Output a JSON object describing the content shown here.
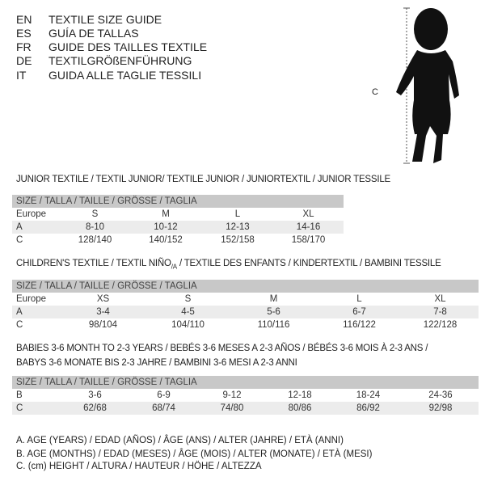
{
  "languages": [
    {
      "code": "EN",
      "title": "TEXTILE SIZE GUIDE"
    },
    {
      "code": "ES",
      "title": "GUÍA DE TALLAS"
    },
    {
      "code": "FR",
      "title": "GUIDE DES TAILLES TEXTILE"
    },
    {
      "code": "DE",
      "title": "TEXTILGRÖßENFÜHRUNG"
    },
    {
      "code": "IT",
      "title": "GUIDA ALLE TAGLIE TESSILI"
    }
  ],
  "figure": {
    "label": "C"
  },
  "junior": {
    "title": "JUNIOR TEXTILE / TEXTIL JUNIOR/ TEXTILE JUNIOR / JUNIORTEXTIL / JUNIOR TESSILE",
    "header": "SIZE / TALLA / TAILLE / GRÖSSE / TAGLIA",
    "rows": [
      {
        "label": "Europe",
        "values": [
          "S",
          "M",
          "L",
          "XL"
        ]
      },
      {
        "label": "A",
        "values": [
          "8-10",
          "10-12",
          "12-13",
          "14-16"
        ]
      },
      {
        "label": "C",
        "values": [
          "128/140",
          "140/152",
          "152/158",
          "158/170"
        ]
      }
    ]
  },
  "children": {
    "title_main": "CHILDREN'S TEXTILE / TEXTIL NIÑO",
    "title_sub": "/A",
    "title_rest": " / TEXTILE DES ENFANTS / KINDERTEXTIL / BAMBINI TESSILE",
    "header": "SIZE / TALLA / TAILLE / GRÖSSE / TAGLIA",
    "rows": [
      {
        "label": "Europe",
        "values": [
          "XS",
          "S",
          "M",
          "L",
          "XL"
        ]
      },
      {
        "label": "A",
        "values": [
          "3-4",
          "4-5",
          "5-6",
          "6-7",
          "7-8"
        ]
      },
      {
        "label": "C",
        "values": [
          "98/104",
          "104/110",
          "110/116",
          "116/122",
          "122/128"
        ]
      }
    ]
  },
  "babies": {
    "title_line1": "BABIES 3-6 MONTH TO 2-3 YEARS / BEBÉS 3-6 MESES A 2-3 AÑOS / BÉBÉS 3-6 MOIS À 2-3 ANS /",
    "title_line2": "BABYS 3-6 MONATE BIS 2-3 JAHRE / BAMBINI 3-6 MESI A 2-3 ANNI",
    "header": "SIZE / TALLA / TAILLE / GRÖSSE / TAGLIA",
    "rows": [
      {
        "label": "B",
        "values": [
          "3-6",
          "6-9",
          "9-12",
          "12-18",
          "18-24",
          "24-36"
        ]
      },
      {
        "label": "C",
        "values": [
          "62/68",
          "68/74",
          "74/80",
          "80/86",
          "86/92",
          "92/98"
        ]
      }
    ]
  },
  "legend": [
    "A. AGE (YEARS) / EDAD (AÑOS) / ÂGE (ANS) / ALTER (JAHRE) / ETÀ (ANNI)",
    "B. AGE (MONTHS) / EDAD (MESES) / ÂGE (MOIS) / ALTER (MONATE) / ETÀ (MESI)",
    "C. (cm) HEIGHT / ALTURA / HAUTEUR / HÖHE / ALTEZZA"
  ]
}
